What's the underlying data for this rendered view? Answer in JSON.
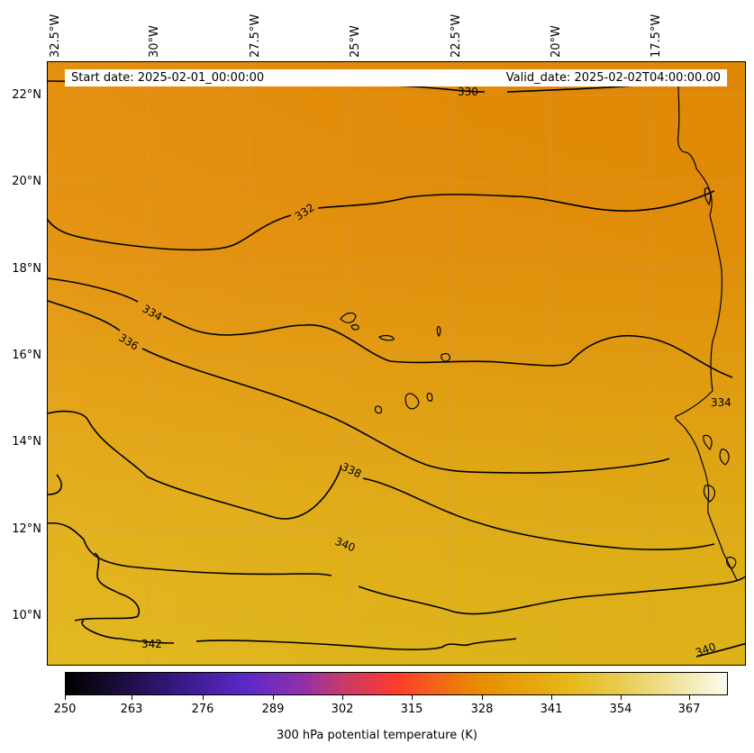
{
  "map": {
    "header": {
      "start_date": "Start date: 2025-02-01_00:00:00",
      "valid_date": "Valid_date: 2025-02-02T04:00:00.00"
    },
    "longitude_labels": [
      "32.5°W",
      "30°W",
      "27.5°W",
      "25°W",
      "22.5°W",
      "20°W",
      "17.5°W"
    ],
    "latitude_labels": [
      "22°N",
      "20°N",
      "18°N",
      "16°N",
      "14°N",
      "12°N",
      "10°N"
    ],
    "contour_labels": [
      "330",
      "332",
      "334",
      "336",
      "338",
      "340",
      "334",
      "340",
      "342"
    ],
    "colors": {
      "field_north": "#e48a04",
      "field_mid": "#e59c0c",
      "field_south": "#e2b416",
      "contour": "#000000",
      "grid": "#c8c8c8"
    }
  },
  "colorbar": {
    "tick_labels": [
      "250",
      "263",
      "276",
      "289",
      "302",
      "315",
      "328",
      "341",
      "354",
      "367"
    ],
    "label": "300 hPa potential temperature (K)",
    "range": [
      250,
      372
    ],
    "colormap": "CMRmap-like"
  }
}
